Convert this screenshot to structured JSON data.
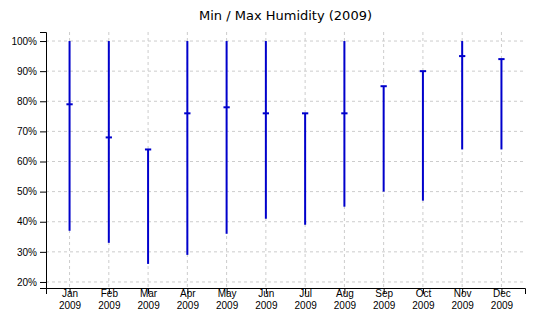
{
  "chart_data": {
    "type": "range",
    "title": "Min / Max Humidity (2009)",
    "categories": [
      "Jan\n2009",
      "Feb\n2009",
      "Mar\n2009",
      "Apr\n2009",
      "May\n2009",
      "Jun\n2009",
      "Jul\n2009",
      "Aug\n2009",
      "Sep\n2009",
      "Oct\n2009",
      "Nov\n2009",
      "Dec\n2009"
    ],
    "min": [
      37,
      33,
      26,
      29,
      36,
      41,
      39,
      45,
      50,
      47,
      64,
      64
    ],
    "max": [
      100,
      100,
      64,
      100,
      100,
      100,
      76,
      100,
      85,
      90,
      100,
      94
    ],
    "avg": [
      79,
      68,
      64,
      76,
      78,
      76,
      76,
      76,
      85,
      90,
      95,
      94
    ],
    "color": "#0000cc",
    "ylim": [
      18,
      103
    ],
    "yticks": [
      {
        "value": 20,
        "label": "20%"
      },
      {
        "value": 30,
        "label": "30%"
      },
      {
        "value": 40,
        "label": "40%"
      },
      {
        "value": 50,
        "label": "50%"
      },
      {
        "value": 60,
        "label": "60%"
      },
      {
        "value": 70,
        "label": "70%"
      },
      {
        "value": 80,
        "label": "80%"
      },
      {
        "value": 90,
        "label": "90%"
      },
      {
        "value": 100,
        "label": "100%"
      }
    ],
    "grid": true
  }
}
